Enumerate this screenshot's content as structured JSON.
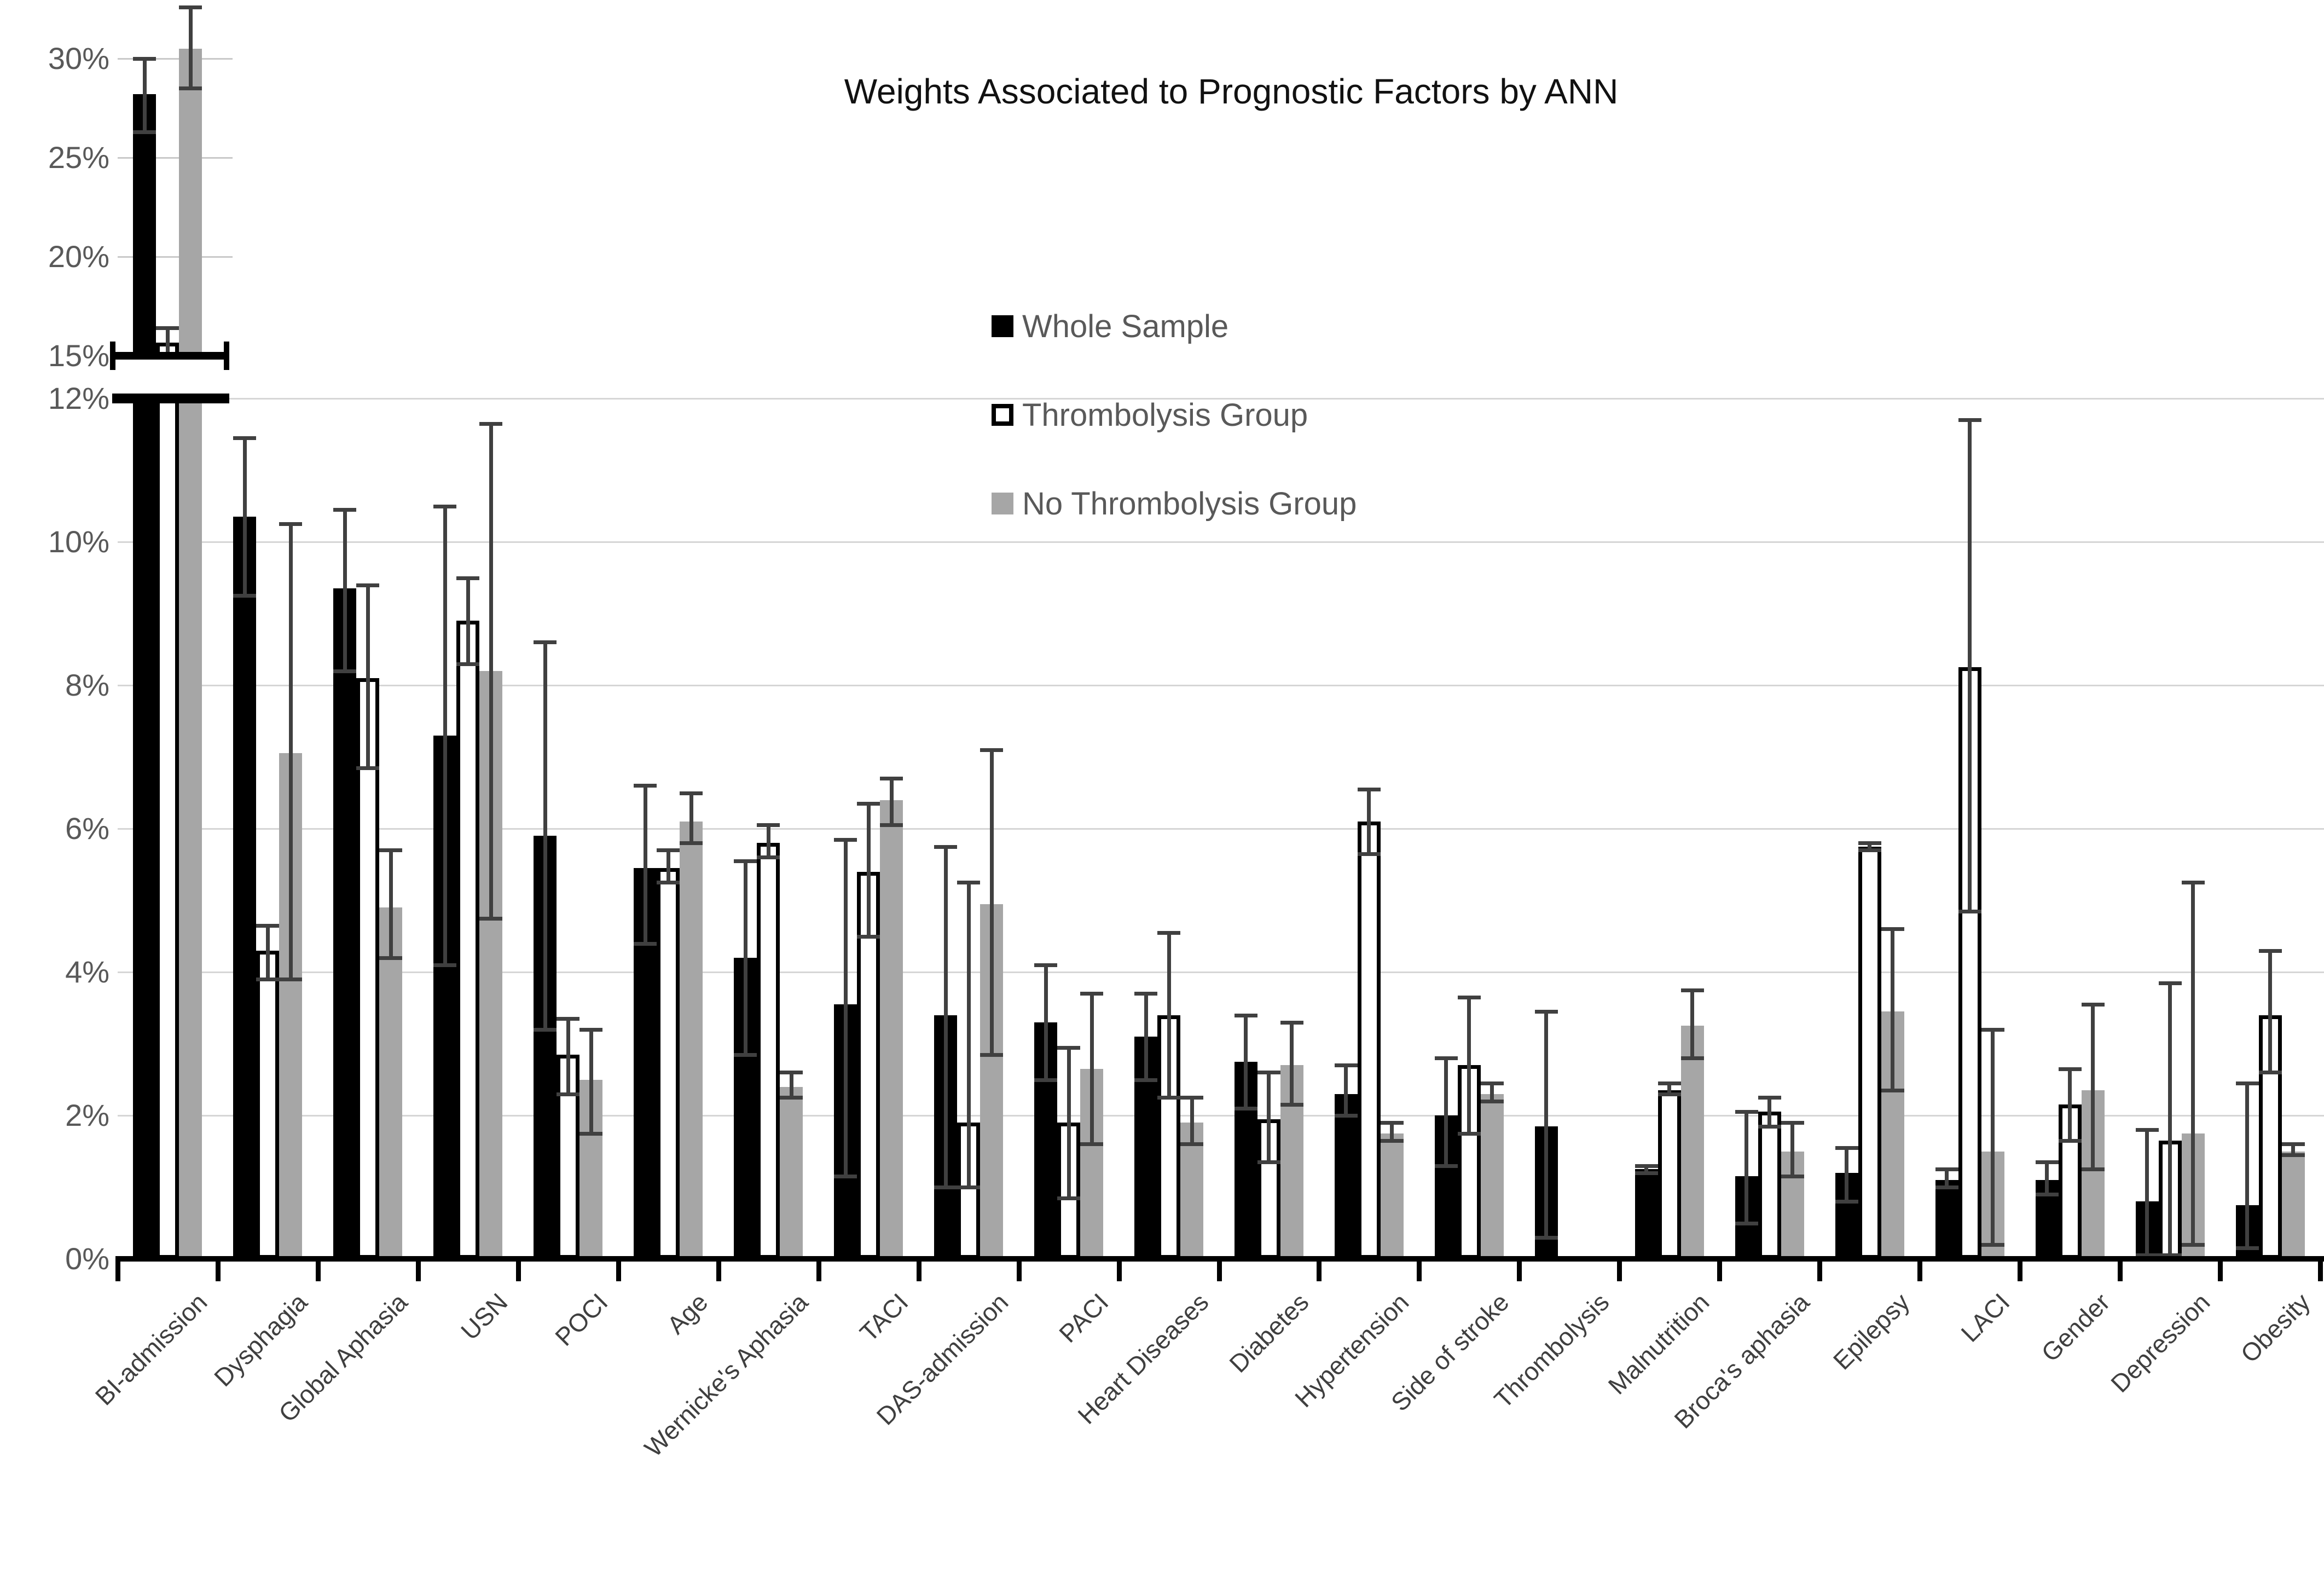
{
  "title": "Weights Associated to Prognostic Factors by ANN",
  "legend": [
    {
      "label": "Whole Sample",
      "swatch_color": "#000000"
    },
    {
      "label": "Thrombolysis Group",
      "swatch_color": "#ffffff"
    },
    {
      "label": "No Thrombolysis Group",
      "swatch_color": "#a6a6a6"
    }
  ],
  "colors": {
    "whole_sample": "#000000",
    "thrombolysis": "#ffffff",
    "no_thrombolysis": "#a6a6a6",
    "error_bar": "#404040",
    "gridline": "#d6d6d6",
    "axis_text": "#595959",
    "category_text": "#3f3f3f"
  },
  "chart_data": {
    "type": "bar",
    "title": "Weights Associated to Prognostic Factors by ANN",
    "xlabel": "",
    "ylabel": "",
    "grid": true,
    "legend_position": "upper-center",
    "y_axis": {
      "unit": "%",
      "broken_axis": true,
      "lower_range": [
        0,
        12
      ],
      "upper_range": [
        15,
        32.7
      ],
      "lower_tick_values": [
        0,
        2,
        4,
        6,
        8,
        10,
        12
      ],
      "lower_tick_labels": [
        "0%",
        "2%",
        "4%",
        "6%",
        "8%",
        "10%",
        "12%"
      ],
      "upper_tick_values": [
        15,
        20,
        25,
        30
      ],
      "upper_tick_labels": [
        "15%",
        "20%",
        "25%",
        "30%"
      ]
    },
    "categories": [
      "BI-admission",
      "Dysphagia",
      "Global Aphasia",
      "USN",
      "POCI",
      "Age",
      "Wernicke's Aphasia",
      "TACI",
      "DAS-admission",
      "PACI",
      "Heart Diseases",
      "Diabetes",
      "Hypertension",
      "Side of stroke",
      "Thrombolysis",
      "Malnutrition",
      "Broca's aphasia",
      "Epilepsy",
      "LACI",
      "Gender",
      "Depression",
      "Obesity"
    ],
    "series": [
      {
        "name": "Whole Sample",
        "color": "#000000",
        "values": [
          28.2,
          10.35,
          9.35,
          7.3,
          5.9,
          5.45,
          4.2,
          3.55,
          3.4,
          3.3,
          3.1,
          2.75,
          2.3,
          2.0,
          1.85,
          1.25,
          1.15,
          1.2,
          1.1,
          1.1,
          0.8,
          0.75
        ],
        "errors": [
          [
            26.3,
            30.0
          ],
          [
            9.25,
            11.45
          ],
          [
            8.2,
            10.45
          ],
          [
            4.1,
            10.5
          ],
          [
            3.2,
            8.6
          ],
          [
            4.4,
            6.6
          ],
          [
            2.85,
            5.55
          ],
          [
            1.15,
            5.85
          ],
          [
            1.0,
            5.75
          ],
          [
            2.5,
            4.1
          ],
          [
            2.5,
            3.7
          ],
          [
            2.1,
            3.4
          ],
          [
            2.0,
            2.7
          ],
          [
            1.3,
            2.8
          ],
          [
            0.3,
            3.45
          ],
          [
            1.2,
            1.3
          ],
          [
            0.5,
            2.05
          ],
          [
            0.8,
            1.55
          ],
          [
            1.0,
            1.25
          ],
          [
            0.9,
            1.35
          ],
          [
            0.05,
            1.8
          ],
          [
            0.15,
            2.45
          ]
        ]
      },
      {
        "name": "Thrombolysis Group",
        "color": "#ffffff",
        "values": [
          15.65,
          4.3,
          8.1,
          8.9,
          2.85,
          5.45,
          5.8,
          5.4,
          1.9,
          1.9,
          3.4,
          1.95,
          6.1,
          2.7,
          0,
          2.35,
          2.05,
          5.75,
          8.25,
          2.15,
          1.65,
          3.4
        ],
        "errors": [
          [
            15.1,
            16.4
          ],
          [
            3.9,
            4.65
          ],
          [
            6.85,
            9.4
          ],
          [
            8.3,
            9.5
          ],
          [
            2.3,
            3.35
          ],
          [
            5.25,
            5.7
          ],
          [
            5.6,
            6.05
          ],
          [
            4.5,
            6.35
          ],
          [
            1.0,
            5.25
          ],
          [
            0.85,
            2.95
          ],
          [
            2.25,
            4.55
          ],
          [
            1.35,
            2.6
          ],
          [
            5.65,
            6.55
          ],
          [
            1.75,
            3.65
          ],
          [
            0,
            0
          ],
          [
            2.3,
            2.45
          ],
          [
            1.85,
            2.25
          ],
          [
            5.7,
            5.8
          ],
          [
            4.85,
            11.7
          ],
          [
            1.65,
            2.65
          ],
          [
            0.05,
            3.85
          ],
          [
            2.6,
            4.3
          ]
        ]
      },
      {
        "name": "No Thrombolysis Group",
        "color": "#a6a6a6",
        "values": [
          30.5,
          7.05,
          4.9,
          8.2,
          2.5,
          6.1,
          2.4,
          6.4,
          4.95,
          2.65,
          1.9,
          2.7,
          1.75,
          2.3,
          0,
          3.25,
          1.5,
          3.45,
          1.5,
          2.35,
          1.75,
          1.5
        ],
        "errors": [
          [
            28.5,
            32.6
          ],
          [
            3.9,
            10.25
          ],
          [
            4.2,
            5.7
          ],
          [
            4.75,
            11.65
          ],
          [
            1.75,
            3.2
          ],
          [
            5.8,
            6.5
          ],
          [
            2.25,
            2.6
          ],
          [
            6.05,
            6.7
          ],
          [
            2.85,
            7.1
          ],
          [
            1.6,
            3.7
          ],
          [
            1.6,
            2.25
          ],
          [
            2.15,
            3.3
          ],
          [
            1.65,
            1.9
          ],
          [
            2.2,
            2.45
          ],
          [
            0,
            0
          ],
          [
            2.8,
            3.75
          ],
          [
            1.15,
            1.9
          ],
          [
            2.35,
            4.6
          ],
          [
            0.2,
            3.2
          ],
          [
            1.25,
            3.55
          ],
          [
            0.2,
            5.25
          ],
          [
            1.45,
            1.6
          ]
        ]
      }
    ]
  }
}
